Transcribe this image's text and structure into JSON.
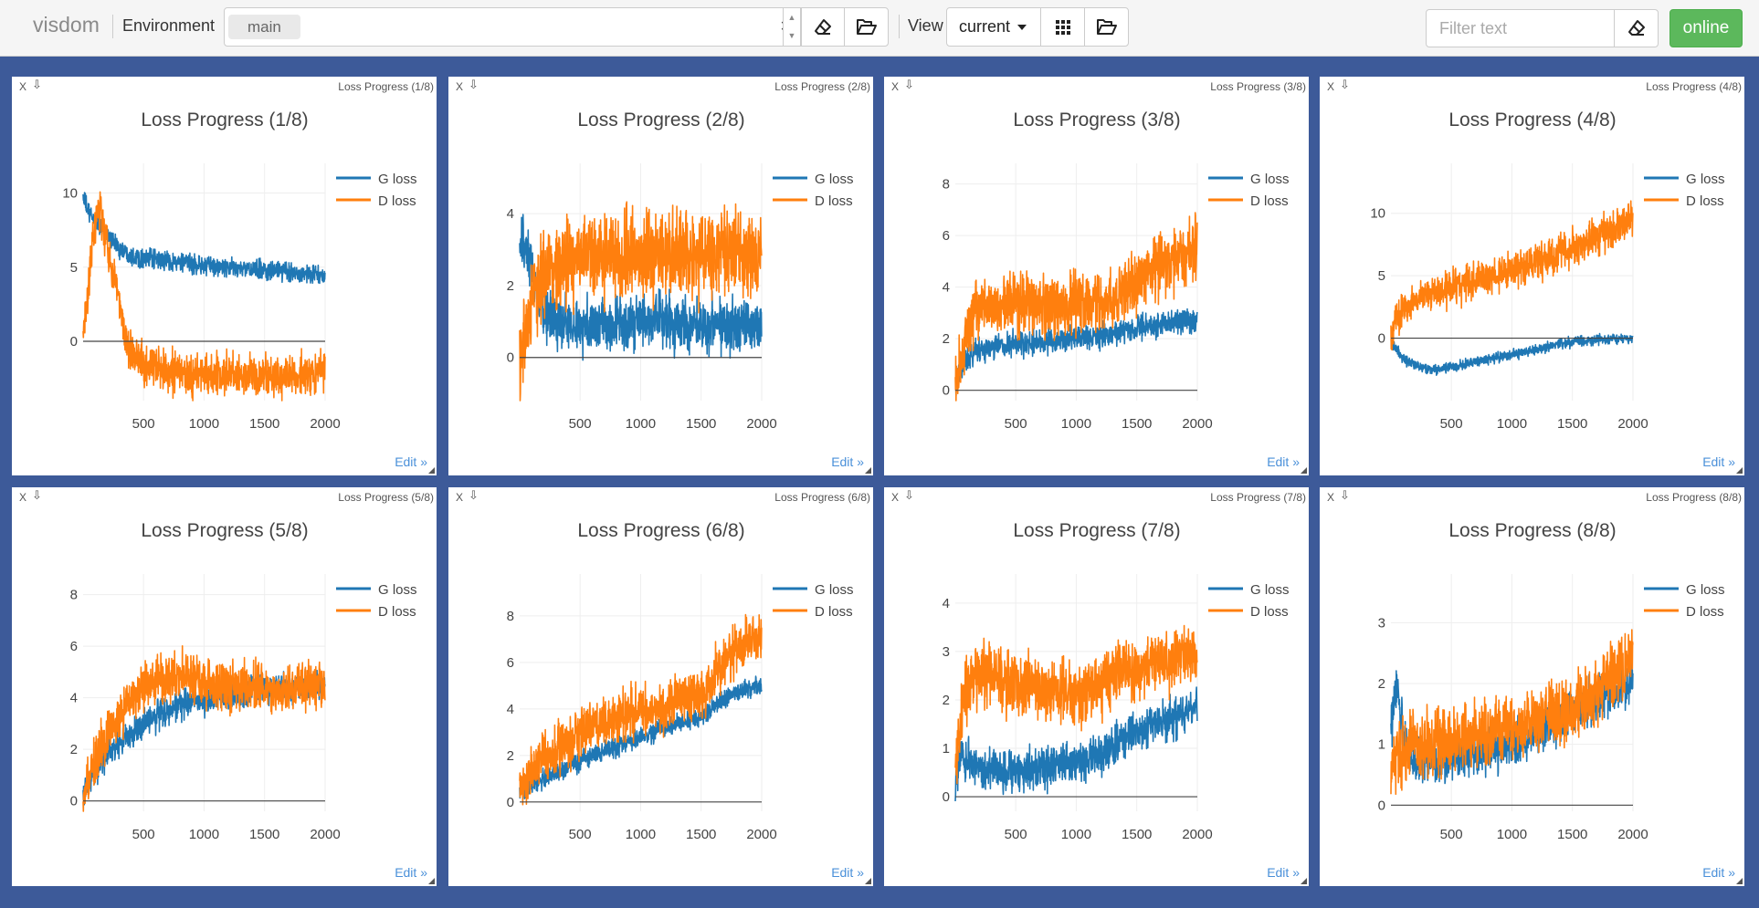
{
  "app": {
    "brand": "visdom",
    "environment_label": "Environment",
    "environment_value": "main",
    "clear_symbol": "×",
    "view_label": "View",
    "view_value": "current",
    "filter_placeholder": "Filter text",
    "status_button": "online"
  },
  "colors": {
    "background": "#3d5a99",
    "g_loss": "#1f77b4",
    "d_loss": "#ff7f0e",
    "online": "#5cb85c",
    "edit_link": "#4a90d9"
  },
  "icons": {
    "env_erase": "eraser-icon",
    "env_folder": "folder-open-icon",
    "view_grid": "grid-icon",
    "view_folder": "folder-open-icon",
    "filter_erase": "eraser-icon",
    "pane_close": "close-icon",
    "pane_download": "download-icon"
  },
  "pane_controls": {
    "close_label": "X",
    "download_symbol": "⇩",
    "edit_label": "Edit »"
  },
  "chart_data": [
    {
      "type": "line",
      "title": "Loss Progress (1/8)",
      "caption": "Loss Progress (1/8)",
      "x_range": [
        1,
        2000
      ],
      "x_ticks": [
        500,
        1000,
        1500,
        2000
      ],
      "ylim": [
        -4,
        12
      ],
      "y_ticks": [
        0,
        5,
        10
      ],
      "legend_position": "top-right",
      "series": [
        {
          "name": "G loss",
          "x": [
            1,
            50,
            100,
            150,
            200,
            300,
            400,
            500,
            700,
            900,
            1100,
            1300,
            1500,
            1700,
            2000
          ],
          "values": [
            9.8,
            8.6,
            8.2,
            7.8,
            7.2,
            6.3,
            5.8,
            5.6,
            5.4,
            5.2,
            5.0,
            4.9,
            4.8,
            4.7,
            4.4
          ],
          "noise": 0.55
        },
        {
          "name": "D loss",
          "x": [
            1,
            30,
            60,
            90,
            120,
            150,
            200,
            250,
            300,
            350,
            400,
            500,
            700,
            900,
            1100,
            1300,
            1500,
            1700,
            2000
          ],
          "values": [
            0.5,
            2.0,
            5.0,
            7.5,
            9.0,
            8.5,
            6.5,
            4.5,
            2.8,
            0.5,
            -0.8,
            -1.5,
            -2.0,
            -2.3,
            -2.2,
            -2.4,
            -2.3,
            -2.4,
            -2.2
          ],
          "noise": 1.2
        }
      ]
    },
    {
      "type": "line",
      "title": "Loss Progress (2/8)",
      "caption": "Loss Progress (2/8)",
      "x_range": [
        1,
        2000
      ],
      "x_ticks": [
        500,
        1000,
        1500,
        2000
      ],
      "ylim": [
        -1.2,
        5.4
      ],
      "y_ticks": [
        0,
        2,
        4
      ],
      "legend_position": "top-right",
      "series": [
        {
          "name": "G loss",
          "x": [
            1,
            20,
            60,
            100,
            150,
            200,
            300,
            400,
            600,
            800,
            1000,
            1200,
            1400,
            1600,
            1800,
            2000
          ],
          "values": [
            2.9,
            3.2,
            2.8,
            2.5,
            1.8,
            1.3,
            1.0,
            0.9,
            0.9,
            0.9,
            1.0,
            1.0,
            0.9,
            1.0,
            0.9,
            1.0
          ],
          "noise": 0.65
        },
        {
          "name": "D loss",
          "x": [
            1,
            30,
            60,
            100,
            150,
            200,
            300,
            400,
            600,
            800,
            1000,
            1200,
            1400,
            1600,
            1800,
            2000
          ],
          "values": [
            -0.4,
            0.3,
            1.0,
            1.6,
            2.0,
            2.4,
            2.6,
            2.7,
            2.8,
            2.8,
            2.9,
            2.8,
            2.9,
            2.8,
            2.9,
            2.9
          ],
          "noise": 1.0
        }
      ]
    },
    {
      "type": "line",
      "title": "Loss Progress (3/8)",
      "caption": "Loss Progress (3/8)",
      "x_range": [
        1,
        2000
      ],
      "x_ticks": [
        500,
        1000,
        1500,
        2000
      ],
      "ylim": [
        -0.4,
        8.8
      ],
      "y_ticks": [
        0,
        2,
        4,
        6,
        8
      ],
      "legend_position": "top-right",
      "series": [
        {
          "name": "G loss",
          "x": [
            1,
            50,
            100,
            200,
            400,
            600,
            800,
            1000,
            1200,
            1400,
            1600,
            1800,
            2000
          ],
          "values": [
            0.3,
            0.8,
            1.3,
            1.6,
            1.7,
            1.8,
            1.9,
            2.0,
            2.1,
            2.3,
            2.5,
            2.6,
            2.7
          ],
          "noise": 0.4
        },
        {
          "name": "D loss",
          "x": [
            1,
            50,
            100,
            200,
            400,
            600,
            800,
            1000,
            1200,
            1300,
            1400,
            1500,
            1600,
            1800,
            2000
          ],
          "values": [
            0.3,
            1.2,
            2.6,
            3.3,
            3.4,
            3.4,
            3.3,
            3.3,
            3.4,
            3.5,
            3.8,
            4.3,
            4.6,
            5.0,
            5.5
          ],
          "noise": 1.0
        }
      ]
    },
    {
      "type": "line",
      "title": "Loss Progress (4/8)",
      "caption": "Loss Progress (4/8)",
      "x_range": [
        1,
        2000
      ],
      "x_ticks": [
        500,
        1000,
        1500,
        2000
      ],
      "ylim": [
        -5,
        14
      ],
      "y_ticks": [
        0,
        5,
        10
      ],
      "legend_position": "top-right",
      "series": [
        {
          "name": "G loss",
          "x": [
            1,
            50,
            100,
            200,
            300,
            400,
            500,
            700,
            900,
            1100,
            1300,
            1500,
            1700,
            2000
          ],
          "values": [
            -0.2,
            -1.0,
            -1.6,
            -2.2,
            -2.5,
            -2.5,
            -2.3,
            -1.9,
            -1.5,
            -1.1,
            -0.7,
            -0.3,
            -0.1,
            0.0
          ],
          "noise": 0.35
        },
        {
          "name": "D loss",
          "x": [
            1,
            50,
            100,
            200,
            400,
            600,
            800,
            1000,
            1200,
            1400,
            1600,
            1800,
            2000
          ],
          "values": [
            0.3,
            1.5,
            2.3,
            3.0,
            3.8,
            4.3,
            4.9,
            5.5,
            6.1,
            6.8,
            7.6,
            8.5,
            9.5
          ],
          "noise": 1.2
        }
      ]
    },
    {
      "type": "line",
      "title": "Loss Progress (5/8)",
      "caption": "Loss Progress (5/8)",
      "x_range": [
        1,
        2000
      ],
      "x_ticks": [
        500,
        1000,
        1500,
        2000
      ],
      "ylim": [
        -0.4,
        8.8
      ],
      "y_ticks": [
        0,
        2,
        4,
        6,
        8
      ],
      "legend_position": "top-right",
      "series": [
        {
          "name": "G loss",
          "x": [
            1,
            100,
            200,
            300,
            400,
            500,
            600,
            700,
            800,
            1000,
            1200,
            1400,
            1500,
            1600,
            1800,
            2000
          ],
          "values": [
            0.3,
            1.2,
            1.8,
            2.2,
            2.6,
            3.0,
            3.3,
            3.5,
            3.7,
            3.9,
            4.1,
            4.3,
            4.4,
            4.4,
            4.4,
            4.5
          ],
          "noise": 0.5
        },
        {
          "name": "D loss",
          "x": [
            1,
            100,
            200,
            300,
            400,
            500,
            600,
            700,
            800,
            900,
            1000,
            1200,
            1400,
            1600,
            1800,
            2000
          ],
          "values": [
            0.4,
            1.6,
            2.5,
            3.2,
            3.9,
            4.4,
            4.7,
            4.8,
            4.8,
            4.8,
            4.6,
            4.5,
            4.4,
            4.3,
            4.4,
            4.6
          ],
          "noise": 0.8
        }
      ]
    },
    {
      "type": "line",
      "title": "Loss Progress (6/8)",
      "caption": "Loss Progress (6/8)",
      "x_range": [
        1,
        2000
      ],
      "x_ticks": [
        500,
        1000,
        1500,
        2000
      ],
      "ylim": [
        -0.4,
        9.8
      ],
      "y_ticks": [
        0,
        2,
        4,
        6,
        8
      ],
      "legend_position": "top-right",
      "series": [
        {
          "name": "G loss",
          "x": [
            1,
            200,
            400,
            600,
            800,
            1000,
            1200,
            1400,
            1550,
            1600,
            1700,
            1800,
            2000
          ],
          "values": [
            0.5,
            1.0,
            1.5,
            2.0,
            2.4,
            2.8,
            3.2,
            3.5,
            3.8,
            4.1,
            4.5,
            4.7,
            5.0
          ],
          "noise": 0.35
        },
        {
          "name": "D loss",
          "x": [
            1,
            100,
            200,
            400,
            600,
            800,
            1000,
            1200,
            1300,
            1400,
            1550,
            1600,
            1700,
            1800,
            2000
          ],
          "values": [
            0.6,
            1.2,
            1.8,
            2.6,
            3.2,
            3.6,
            3.9,
            4.1,
            4.5,
            4.4,
            4.5,
            5.5,
            6.0,
            6.5,
            7.2
          ],
          "noise": 0.9
        }
      ]
    },
    {
      "type": "line",
      "title": "Loss Progress (7/8)",
      "caption": "Loss Progress (7/8)",
      "x_range": [
        1,
        2000
      ],
      "x_ticks": [
        500,
        1000,
        1500,
        2000
      ],
      "ylim": [
        -0.3,
        4.6
      ],
      "y_ticks": [
        0,
        1,
        2,
        3,
        4
      ],
      "legend_position": "top-right",
      "series": [
        {
          "name": "G loss",
          "x": [
            1,
            50,
            100,
            200,
            400,
            600,
            800,
            1000,
            1200,
            1400,
            1600,
            1800,
            2000
          ],
          "values": [
            0.3,
            0.9,
            0.7,
            0.6,
            0.55,
            0.55,
            0.6,
            0.7,
            0.9,
            1.2,
            1.45,
            1.65,
            1.85
          ],
          "noise": 0.35
        },
        {
          "name": "D loss",
          "x": [
            1,
            50,
            100,
            200,
            400,
            600,
            800,
            1000,
            1200,
            1300,
            1400,
            1600,
            1800,
            2000
          ],
          "values": [
            0.4,
            1.8,
            2.3,
            2.6,
            2.4,
            2.3,
            2.2,
            2.1,
            2.3,
            2.5,
            2.6,
            2.7,
            2.8,
            3.0
          ],
          "noise": 0.55
        }
      ]
    },
    {
      "type": "line",
      "title": "Loss Progress (8/8)",
      "caption": "Loss Progress (8/8)",
      "x_range": [
        1,
        2000
      ],
      "x_ticks": [
        500,
        1000,
        1500,
        2000
      ],
      "ylim": [
        -0.1,
        3.8
      ],
      "y_ticks": [
        0,
        1,
        2,
        3
      ],
      "legend_position": "top-right",
      "series": [
        {
          "name": "G loss",
          "x": [
            1,
            50,
            100,
            150,
            200,
            300,
            400,
            600,
            800,
            1000,
            1200,
            1400,
            1600,
            1800,
            2000
          ],
          "values": [
            1.3,
            2.0,
            1.2,
            0.8,
            0.7,
            0.7,
            0.75,
            0.8,
            0.9,
            1.0,
            1.2,
            1.4,
            1.65,
            1.85,
            2.05
          ],
          "noise": 0.3
        },
        {
          "name": "D loss",
          "x": [
            1,
            50,
            100,
            200,
            400,
            600,
            800,
            1000,
            1200,
            1400,
            1500,
            1600,
            1700,
            1800,
            2000
          ],
          "values": [
            0.6,
            0.9,
            0.9,
            1.0,
            1.0,
            1.1,
            1.2,
            1.3,
            1.4,
            1.5,
            1.6,
            1.7,
            1.9,
            2.1,
            2.5
          ],
          "noise": 0.45
        }
      ]
    }
  ]
}
